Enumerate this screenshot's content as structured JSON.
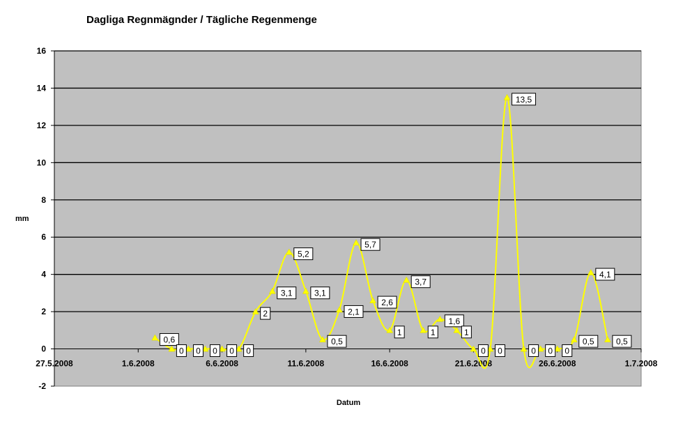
{
  "chart_data": {
    "type": "line",
    "title": "Dagliga Regnmägnder / Tägliche Regenmenge",
    "xlabel": "Datum",
    "ylabel": "mm",
    "x_ticks": [
      "27.5.2008",
      "1.6.2008",
      "6.6.2008",
      "11.6.2008",
      "16.6.2008",
      "21.6.2008",
      "26.6.2008",
      "1.7.2008"
    ],
    "y_ticks": [
      "-2",
      "0",
      "2",
      "4",
      "6",
      "8",
      "10",
      "12",
      "14",
      "16"
    ],
    "ylim": [
      -2,
      16
    ],
    "xlim": [
      "2008-05-27",
      "2008-07-01"
    ],
    "grid": true,
    "smoothed": true,
    "line_color": "#ffff00",
    "plot_background": "#c0c0c0",
    "series": [
      {
        "points": [
          {
            "date": "2008-06-02",
            "value": 0.6,
            "label": "0,6"
          },
          {
            "date": "2008-06-03",
            "value": 0,
            "label": "0"
          },
          {
            "date": "2008-06-04",
            "value": 0,
            "label": "0"
          },
          {
            "date": "2008-06-05",
            "value": 0,
            "label": "0"
          },
          {
            "date": "2008-06-06",
            "value": 0,
            "label": "0"
          },
          {
            "date": "2008-06-07",
            "value": 0,
            "label": "0"
          },
          {
            "date": "2008-06-08",
            "value": 2,
            "label": "2"
          },
          {
            "date": "2008-06-09",
            "value": 3.1,
            "label": "3,1"
          },
          {
            "date": "2008-06-10",
            "value": 5.2,
            "label": "5,2"
          },
          {
            "date": "2008-06-11",
            "value": 3.1,
            "label": "3,1"
          },
          {
            "date": "2008-06-12",
            "value": 0.5,
            "label": "0,5"
          },
          {
            "date": "2008-06-13",
            "value": 2.1,
            "label": "2,1"
          },
          {
            "date": "2008-06-14",
            "value": 5.7,
            "label": "5,7"
          },
          {
            "date": "2008-06-15",
            "value": 2.6,
            "label": "2,6"
          },
          {
            "date": "2008-06-16",
            "value": 1,
            "label": "1"
          },
          {
            "date": "2008-06-17",
            "value": 3.7,
            "label": "3,7"
          },
          {
            "date": "2008-06-18",
            "value": 1,
            "label": "1"
          },
          {
            "date": "2008-06-19",
            "value": 1.6,
            "label": "1,6"
          },
          {
            "date": "2008-06-20",
            "value": 1,
            "label": "1"
          },
          {
            "date": "2008-06-21",
            "value": 0,
            "label": "0"
          },
          {
            "date": "2008-06-22",
            "value": 0,
            "label": "0"
          },
          {
            "date": "2008-06-23",
            "value": 13.5,
            "label": "13,5"
          },
          {
            "date": "2008-06-24",
            "value": 0,
            "label": "0"
          },
          {
            "date": "2008-06-25",
            "value": 0,
            "label": "0"
          },
          {
            "date": "2008-06-26",
            "value": 0,
            "label": "0"
          },
          {
            "date": "2008-06-27",
            "value": 0.5,
            "label": "0,5"
          },
          {
            "date": "2008-06-28",
            "value": 4.1,
            "label": "4,1"
          },
          {
            "date": "2008-06-29",
            "value": 0.5,
            "label": "0,5"
          }
        ]
      }
    ]
  }
}
